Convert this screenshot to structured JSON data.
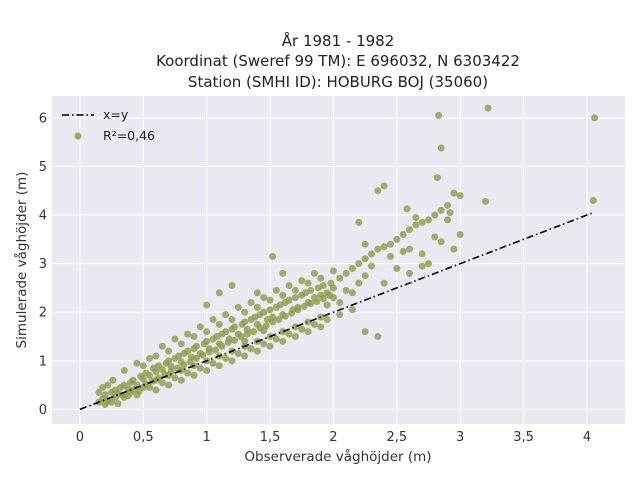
{
  "chart_data": {
    "type": "scatter",
    "title_lines": [
      "År 1981 - 1982",
      "Koordinat (Sweref 99 TM): E 696032, N 6303422",
      "Station (SMHI ID): HOBURG BOJ (35060)"
    ],
    "xlabel": "Observerade våghöjder (m)",
    "ylabel": "Simulerade våghöjder (m)",
    "xlim": [
      -0.22,
      4.3
    ],
    "ylim": [
      -0.3,
      6.45
    ],
    "xticks": [
      0,
      0.5,
      1,
      1.5,
      2,
      2.5,
      3,
      3.5,
      4
    ],
    "xtick_labels": [
      "0",
      "0,5",
      "1",
      "1,5",
      "2",
      "2,5",
      "3",
      "3,5",
      "4"
    ],
    "yticks": [
      0,
      1,
      2,
      3,
      4,
      5,
      6
    ],
    "ytick_labels": [
      "0",
      "1",
      "2",
      "3",
      "4",
      "5",
      "6"
    ],
    "grid": true,
    "legend_position": "top-left",
    "legend": [
      {
        "label": "x=y",
        "kind": "line",
        "style": "dash-dot",
        "color": "#000000"
      },
      {
        "label": "R²=0,46",
        "kind": "marker",
        "color": "#8f9a4a"
      }
    ],
    "reference_line": {
      "x": [
        0,
        4.05
      ],
      "y": [
        0,
        4.05
      ]
    },
    "series": [
      {
        "name": "R²=0,46",
        "color": "#8f9a4a",
        "points": [
          [
            0.15,
            0.15
          ],
          [
            0.18,
            0.22
          ],
          [
            0.2,
            0.3
          ],
          [
            0.22,
            0.18
          ],
          [
            0.25,
            0.35
          ],
          [
            0.28,
            0.4
          ],
          [
            0.3,
            0.32
          ],
          [
            0.32,
            0.45
          ],
          [
            0.35,
            0.5
          ],
          [
            0.38,
            0.42
          ],
          [
            0.4,
            0.55
          ],
          [
            0.42,
            0.6
          ],
          [
            0.45,
            0.5
          ],
          [
            0.48,
            0.68
          ],
          [
            0.5,
            0.62
          ],
          [
            0.52,
            0.75
          ],
          [
            0.55,
            0.7
          ],
          [
            0.58,
            0.85
          ],
          [
            0.6,
            0.78
          ],
          [
            0.62,
            0.9
          ],
          [
            0.65,
            0.82
          ],
          [
            0.68,
            0.95
          ],
          [
            0.7,
            1.0
          ],
          [
            0.72,
            0.88
          ],
          [
            0.75,
            1.05
          ],
          [
            0.78,
            1.1
          ],
          [
            0.8,
            0.98
          ],
          [
            0.82,
            1.15
          ],
          [
            0.85,
            1.2
          ],
          [
            0.88,
            1.08
          ],
          [
            0.9,
            1.25
          ],
          [
            0.92,
            1.3
          ],
          [
            0.95,
            1.15
          ],
          [
            0.98,
            1.35
          ],
          [
            1.0,
            1.4
          ],
          [
            1.02,
            1.25
          ],
          [
            1.05,
            1.45
          ],
          [
            1.08,
            1.5
          ],
          [
            1.1,
            1.35
          ],
          [
            1.12,
            1.55
          ],
          [
            1.15,
            1.6
          ],
          [
            1.18,
            1.45
          ],
          [
            1.2,
            1.65
          ],
          [
            1.22,
            1.7
          ],
          [
            1.25,
            1.55
          ],
          [
            1.28,
            1.75
          ],
          [
            1.3,
            1.8
          ],
          [
            1.32,
            1.65
          ],
          [
            1.35,
            1.85
          ],
          [
            1.38,
            1.9
          ],
          [
            1.4,
            1.75
          ],
          [
            1.42,
            1.95
          ],
          [
            1.45,
            2.0
          ],
          [
            1.48,
            1.85
          ],
          [
            1.5,
            2.05
          ],
          [
            1.52,
            1.9
          ],
          [
            1.55,
            2.1
          ],
          [
            1.58,
            2.15
          ],
          [
            1.6,
            1.95
          ],
          [
            1.62,
            2.2
          ],
          [
            1.65,
            2.25
          ],
          [
            1.68,
            2.05
          ],
          [
            1.7,
            2.3
          ],
          [
            1.72,
            2.1
          ],
          [
            1.75,
            2.35
          ],
          [
            1.78,
            2.4
          ],
          [
            1.8,
            2.2
          ],
          [
            1.82,
            2.45
          ],
          [
            1.85,
            2.3
          ],
          [
            1.88,
            2.5
          ],
          [
            1.9,
            2.35
          ],
          [
            1.92,
            2.55
          ],
          [
            1.95,
            2.4
          ],
          [
            1.98,
            2.6
          ],
          [
            2.0,
            2.5
          ],
          [
            2.05,
            2.7
          ],
          [
            2.1,
            2.8
          ],
          [
            2.15,
            2.9
          ],
          [
            2.2,
            3.0
          ],
          [
            2.25,
            3.1
          ],
          [
            2.3,
            3.2
          ],
          [
            2.35,
            3.3
          ],
          [
            2.4,
            3.35
          ],
          [
            2.45,
            3.4
          ],
          [
            2.5,
            3.5
          ],
          [
            2.55,
            3.6
          ],
          [
            2.6,
            3.7
          ],
          [
            2.65,
            3.8
          ],
          [
            2.7,
            3.85
          ],
          [
            2.75,
            3.9
          ],
          [
            2.8,
            4.0
          ],
          [
            2.85,
            4.1
          ],
          [
            2.9,
            4.2
          ],
          [
            2.95,
            4.45
          ],
          [
            3.0,
            3.6
          ],
          [
            3.2,
            4.28
          ],
          [
            3.22,
            6.2
          ],
          [
            2.83,
            6.05
          ],
          [
            2.85,
            5.38
          ],
          [
            2.82,
            4.77
          ],
          [
            4.06,
            6.0
          ],
          [
            4.05,
            4.3
          ],
          [
            2.58,
            4.13
          ],
          [
            2.4,
            4.6
          ],
          [
            2.35,
            4.5
          ],
          [
            2.2,
            3.85
          ],
          [
            2.25,
            3.4
          ],
          [
            1.52,
            3.15
          ],
          [
            0.3,
            0.12
          ],
          [
            0.35,
            0.25
          ],
          [
            0.45,
            0.3
          ],
          [
            0.55,
            0.45
          ],
          [
            0.65,
            0.55
          ],
          [
            0.75,
            0.65
          ],
          [
            0.85,
            0.75
          ],
          [
            0.95,
            0.85
          ],
          [
            1.05,
            0.95
          ],
          [
            1.15,
            1.05
          ],
          [
            1.25,
            1.15
          ],
          [
            1.35,
            1.25
          ],
          [
            1.45,
            1.35
          ],
          [
            1.55,
            1.45
          ],
          [
            1.65,
            1.55
          ],
          [
            1.75,
            1.65
          ],
          [
            1.85,
            1.75
          ],
          [
            1.95,
            1.85
          ],
          [
            2.05,
            1.95
          ],
          [
            2.15,
            2.05
          ],
          [
            2.25,
            1.6
          ],
          [
            2.35,
            1.5
          ],
          [
            0.6,
            0.4
          ],
          [
            0.7,
            0.5
          ],
          [
            0.8,
            0.6
          ],
          [
            0.9,
            0.7
          ],
          [
            1.0,
            0.8
          ],
          [
            1.1,
            0.9
          ],
          [
            1.2,
            1.0
          ],
          [
            1.3,
            1.1
          ],
          [
            1.4,
            1.2
          ],
          [
            1.5,
            1.3
          ],
          [
            1.6,
            1.4
          ],
          [
            1.7,
            1.5
          ],
          [
            1.8,
            1.6
          ],
          [
            1.9,
            1.7
          ],
          [
            0.5,
            0.9
          ],
          [
            0.6,
            1.1
          ],
          [
            0.7,
            1.2
          ],
          [
            0.8,
            1.35
          ],
          [
            0.9,
            1.5
          ],
          [
            1.0,
            1.6
          ],
          [
            1.1,
            1.75
          ],
          [
            1.2,
            1.85
          ],
          [
            1.3,
            2.0
          ],
          [
            1.4,
            2.1
          ],
          [
            1.5,
            2.25
          ],
          [
            1.6,
            2.35
          ],
          [
            1.7,
            2.45
          ],
          [
            1.8,
            2.6
          ],
          [
            1.9,
            2.7
          ],
          [
            2.0,
            2.85
          ],
          [
            0.4,
            0.35
          ],
          [
            0.5,
            0.45
          ],
          [
            0.6,
            0.6
          ],
          [
            0.7,
            0.7
          ],
          [
            0.8,
            0.8
          ],
          [
            0.9,
            0.9
          ],
          [
            1.0,
            1.0
          ],
          [
            1.1,
            1.1
          ],
          [
            1.2,
            1.2
          ],
          [
            1.3,
            1.3
          ],
          [
            1.4,
            1.4
          ],
          [
            1.5,
            1.5
          ],
          [
            1.6,
            1.6
          ],
          [
            1.7,
            1.7
          ],
          [
            1.8,
            1.8
          ],
          [
            1.9,
            1.9
          ],
          [
            2.6,
            3.3
          ],
          [
            2.7,
            3.2
          ],
          [
            2.75,
            3.0
          ],
          [
            2.8,
            3.55
          ],
          [
            2.9,
            3.9
          ],
          [
            2.65,
            3.95
          ],
          [
            2.55,
            3.25
          ],
          [
            2.45,
            3.15
          ],
          [
            2.3,
            2.95
          ],
          [
            2.2,
            2.6
          ],
          [
            2.1,
            2.45
          ],
          [
            2.0,
            2.3
          ],
          [
            1.95,
            2.15
          ],
          [
            2.05,
            2.2
          ],
          [
            2.15,
            2.4
          ],
          [
            2.25,
            2.75
          ],
          [
            2.4,
            2.6
          ],
          [
            2.5,
            2.9
          ],
          [
            2.6,
            2.8
          ],
          [
            2.7,
            2.95
          ],
          [
            2.85,
            3.45
          ],
          [
            2.95,
            3.3
          ],
          [
            3.0,
            4.4
          ],
          [
            2.92,
            4.05
          ],
          [
            0.2,
            0.1
          ],
          [
            0.25,
            0.15
          ],
          [
            0.28,
            0.25
          ],
          [
            0.33,
            0.3
          ],
          [
            0.38,
            0.28
          ],
          [
            0.42,
            0.4
          ],
          [
            0.47,
            0.38
          ],
          [
            0.52,
            0.52
          ],
          [
            0.57,
            0.58
          ],
          [
            0.62,
            0.65
          ],
          [
            0.67,
            0.72
          ],
          [
            0.72,
            0.78
          ],
          [
            0.77,
            0.85
          ],
          [
            0.82,
            0.92
          ],
          [
            0.87,
            0.98
          ],
          [
            0.92,
            1.05
          ],
          [
            0.97,
            1.12
          ],
          [
            1.02,
            1.18
          ],
          [
            1.07,
            1.22
          ],
          [
            1.12,
            1.3
          ],
          [
            1.17,
            1.38
          ],
          [
            1.22,
            1.42
          ],
          [
            1.27,
            1.5
          ],
          [
            1.32,
            1.55
          ],
          [
            1.37,
            1.6
          ],
          [
            1.42,
            1.68
          ],
          [
            1.47,
            1.72
          ],
          [
            1.52,
            1.8
          ],
          [
            1.57,
            1.85
          ],
          [
            1.62,
            1.92
          ],
          [
            1.67,
            1.98
          ],
          [
            1.72,
            2.05
          ],
          [
            1.77,
            2.12
          ],
          [
            1.82,
            2.18
          ],
          [
            1.87,
            2.22
          ],
          [
            1.92,
            2.28
          ],
          [
            1.97,
            2.35
          ],
          [
            0.35,
            0.8
          ],
          [
            0.45,
            0.95
          ],
          [
            0.55,
            1.05
          ],
          [
            0.65,
            1.3
          ],
          [
            0.75,
            1.45
          ],
          [
            0.85,
            1.55
          ],
          [
            0.95,
            1.7
          ],
          [
            1.05,
            1.85
          ],
          [
            1.15,
            1.95
          ],
          [
            1.25,
            2.1
          ],
          [
            1.35,
            2.2
          ],
          [
            1.45,
            2.3
          ],
          [
            1.55,
            2.45
          ],
          [
            1.65,
            2.55
          ],
          [
            1.75,
            2.65
          ],
          [
            1.85,
            2.8
          ],
          [
            1.0,
            2.15
          ],
          [
            1.1,
            2.4
          ],
          [
            1.2,
            2.55
          ],
          [
            1.4,
            2.4
          ],
          [
            1.6,
            2.8
          ],
          [
            1.3,
            1.4
          ],
          [
            1.45,
            1.62
          ],
          [
            0.15,
            0.35
          ],
          [
            0.18,
            0.45
          ],
          [
            0.22,
            0.5
          ],
          [
            0.26,
            0.6
          ]
        ]
      }
    ]
  }
}
